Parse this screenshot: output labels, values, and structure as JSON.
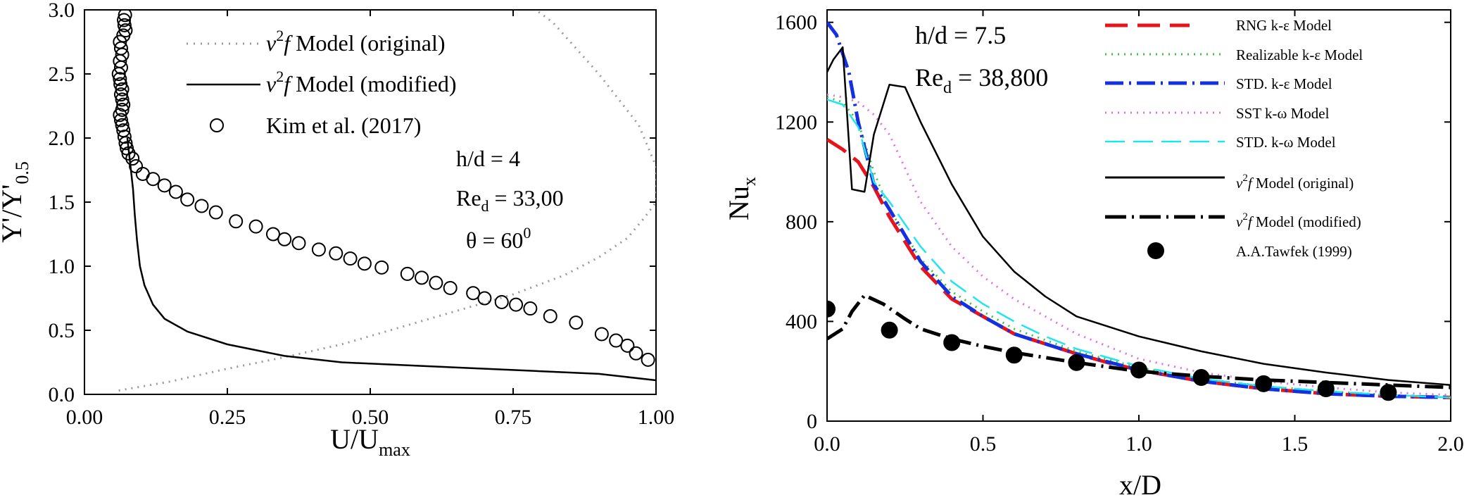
{
  "chart_data": [
    {
      "type": "line",
      "xlabel": "U/U",
      "xlabel_sub": "max",
      "ylabel": "Y'/Y'",
      "ylabel_sub": "0.5",
      "xlim": [
        0,
        1
      ],
      "ylim": [
        0,
        3
      ],
      "xticks": [
        "0.00",
        "0.25",
        "0.50",
        "0.75",
        "1.00"
      ],
      "yticks": [
        "0.0",
        "0.5",
        "1.0",
        "1.5",
        "2.0",
        "2.5",
        "3.0"
      ],
      "grid": false,
      "legend_position": "top-left",
      "annotations": {
        "line1": "h/d = 4",
        "line2_main": "Re",
        "line2_sub": "d",
        "line2_rest": " = 33,00",
        "line3_main": "θ = 60",
        "line3_sup": "0"
      },
      "series": [
        {
          "name": "Model (original)",
          "name_prefix": "v",
          "name_sup": "2",
          "name_f": "f",
          "style": "dotted-arrows",
          "color": "#9a9a9a",
          "points": [
            [
              0.06,
              0.03
            ],
            [
              0.15,
              0.1
            ],
            [
              0.25,
              0.2
            ],
            [
              0.35,
              0.29
            ],
            [
              0.45,
              0.39
            ],
            [
              0.55,
              0.52
            ],
            [
              0.65,
              0.65
            ],
            [
              0.75,
              0.78
            ],
            [
              0.84,
              0.93
            ],
            [
              0.9,
              1.07
            ],
            [
              0.95,
              1.22
            ],
            [
              0.98,
              1.38
            ],
            [
              1.0,
              1.5
            ],
            [
              1.0,
              1.78
            ],
            [
              0.97,
              2.1
            ],
            [
              0.9,
              2.5
            ],
            [
              0.82,
              2.9
            ],
            [
              0.79,
              3.0
            ]
          ]
        },
        {
          "name": "Model (modified)",
          "name_prefix": "v",
          "name_sup": "2",
          "name_f": "f",
          "style": "solid",
          "color": "#000000",
          "points": [
            [
              1.0,
              0.11
            ],
            [
              0.9,
              0.16
            ],
            [
              0.75,
              0.19
            ],
            [
              0.6,
              0.22
            ],
            [
              0.45,
              0.25
            ],
            [
              0.35,
              0.3
            ],
            [
              0.25,
              0.39
            ],
            [
              0.18,
              0.49
            ],
            [
              0.14,
              0.59
            ],
            [
              0.12,
              0.7
            ],
            [
              0.105,
              0.85
            ],
            [
              0.097,
              1.0
            ],
            [
              0.092,
              1.2
            ],
            [
              0.088,
              1.4
            ],
            [
              0.085,
              1.6
            ],
            [
              0.08,
              1.8
            ],
            [
              0.075,
              2.0
            ]
          ]
        },
        {
          "name": "Kim et al. (2017)",
          "style": "open-circle",
          "color": "#000000",
          "points": [
            [
              0.986,
              0.27
            ],
            [
              0.965,
              0.32
            ],
            [
              0.95,
              0.38
            ],
            [
              0.93,
              0.42
            ],
            [
              0.905,
              0.47
            ],
            [
              0.86,
              0.56
            ],
            [
              0.815,
              0.61
            ],
            [
              0.78,
              0.67
            ],
            [
              0.755,
              0.7
            ],
            [
              0.73,
              0.72
            ],
            [
              0.7,
              0.75
            ],
            [
              0.68,
              0.79
            ],
            [
              0.64,
              0.83
            ],
            [
              0.615,
              0.87
            ],
            [
              0.59,
              0.91
            ],
            [
              0.565,
              0.94
            ],
            [
              0.52,
              0.99
            ],
            [
              0.49,
              1.02
            ],
            [
              0.465,
              1.06
            ],
            [
              0.44,
              1.1
            ],
            [
              0.41,
              1.13
            ],
            [
              0.375,
              1.18
            ],
            [
              0.35,
              1.21
            ],
            [
              0.33,
              1.25
            ],
            [
              0.3,
              1.31
            ],
            [
              0.265,
              1.35
            ],
            [
              0.23,
              1.42
            ],
            [
              0.205,
              1.47
            ],
            [
              0.18,
              1.52
            ],
            [
              0.16,
              1.58
            ],
            [
              0.14,
              1.63
            ],
            [
              0.12,
              1.68
            ],
            [
              0.102,
              1.72
            ],
            [
              0.09,
              1.78
            ],
            [
              0.084,
              1.84
            ],
            [
              0.077,
              1.88
            ],
            [
              0.074,
              1.92
            ],
            [
              0.072,
              1.96
            ],
            [
              0.07,
              2.01
            ],
            [
              0.068,
              2.06
            ],
            [
              0.066,
              2.1
            ],
            [
              0.064,
              2.14
            ],
            [
              0.062,
              2.18
            ],
            [
              0.066,
              2.22
            ],
            [
              0.068,
              2.26
            ],
            [
              0.066,
              2.3
            ],
            [
              0.064,
              2.34
            ],
            [
              0.066,
              2.38
            ],
            [
              0.063,
              2.42
            ],
            [
              0.062,
              2.46
            ],
            [
              0.06,
              2.5
            ],
            [
              0.064,
              2.55
            ],
            [
              0.062,
              2.6
            ],
            [
              0.066,
              2.65
            ],
            [
              0.064,
              2.7
            ],
            [
              0.062,
              2.75
            ],
            [
              0.068,
              2.8
            ],
            [
              0.072,
              2.84
            ],
            [
              0.07,
              2.88
            ],
            [
              0.069,
              2.92
            ],
            [
              0.071,
              2.96
            ]
          ]
        }
      ]
    },
    {
      "type": "line",
      "xlabel": "x/D",
      "ylabel": "Nu",
      "ylabel_sub": "x",
      "xlim": [
        0,
        2
      ],
      "ylim": [
        0,
        1650
      ],
      "xticks": [
        "0.0",
        "0.5",
        "1.0",
        "1.5",
        "2.0"
      ],
      "yticks": [
        "0",
        "400",
        "800",
        "1200",
        "1600"
      ],
      "grid": false,
      "legend_position": "top-right",
      "annotations": {
        "line1": "h/d = 7.5",
        "line2_main": "Re",
        "line2_sub": "d",
        "line2_rest": " = 38,800"
      },
      "series": [
        {
          "name": "RNG k-ε Model",
          "style": "long-dash",
          "color": "#e8141c",
          "points": [
            [
              0,
              1130
            ],
            [
              0.05,
              1090
            ],
            [
              0.1,
              1040
            ],
            [
              0.15,
              940
            ],
            [
              0.2,
              820
            ],
            [
              0.3,
              620
            ],
            [
              0.4,
              490
            ],
            [
              0.5,
              420
            ],
            [
              0.6,
              350
            ],
            [
              0.7,
              310
            ],
            [
              0.8,
              270
            ],
            [
              0.9,
              235
            ],
            [
              1.0,
              205
            ],
            [
              1.2,
              160
            ],
            [
              1.4,
              130
            ],
            [
              1.6,
              110
            ],
            [
              1.8,
              100
            ],
            [
              2.0,
              95
            ]
          ]
        },
        {
          "name": "Realizable k-ε Model",
          "style": "dotted-arrows",
          "color": "#36c83a",
          "points": [
            [
              0,
              1300
            ],
            [
              0.05,
              1280
            ],
            [
              0.1,
              1200
            ],
            [
              0.15,
              1000
            ],
            [
              0.2,
              850
            ],
            [
              0.3,
              650
            ],
            [
              0.4,
              520
            ],
            [
              0.5,
              440
            ],
            [
              0.6,
              370
            ],
            [
              0.8,
              280
            ],
            [
              1.0,
              215
            ],
            [
              1.2,
              170
            ],
            [
              1.4,
              140
            ],
            [
              1.6,
              120
            ],
            [
              1.8,
              105
            ],
            [
              2.0,
              95
            ]
          ]
        },
        {
          "name": "STD. k-ε Model",
          "style": "dash-dot",
          "color": "#1530e0",
          "points": [
            [
              0,
              1600
            ],
            [
              0.03,
              1550
            ],
            [
              0.07,
              1400
            ],
            [
              0.1,
              1200
            ],
            [
              0.15,
              950
            ],
            [
              0.2,
              850
            ],
            [
              0.3,
              640
            ],
            [
              0.4,
              500
            ],
            [
              0.5,
              420
            ],
            [
              0.6,
              350
            ],
            [
              0.7,
              310
            ],
            [
              0.8,
              270
            ],
            [
              1.0,
              205
            ],
            [
              1.2,
              160
            ],
            [
              1.4,
              130
            ],
            [
              1.6,
              110
            ],
            [
              1.8,
              100
            ],
            [
              2.0,
              95
            ]
          ]
        },
        {
          "name": "SST k-ω  Model",
          "style": "dotted-arrows",
          "color": "#e070e8",
          "points": [
            [
              0,
              1310
            ],
            [
              0.05,
              1300
            ],
            [
              0.1,
              1280
            ],
            [
              0.15,
              1230
            ],
            [
              0.2,
              1150
            ],
            [
              0.3,
              880
            ],
            [
              0.4,
              700
            ],
            [
              0.5,
              580
            ],
            [
              0.6,
              490
            ],
            [
              0.7,
              420
            ],
            [
              0.8,
              350
            ],
            [
              1.0,
              250
            ],
            [
              1.2,
              195
            ],
            [
              1.4,
              160
            ],
            [
              1.6,
              135
            ],
            [
              1.8,
              115
            ],
            [
              2.0,
              105
            ]
          ]
        },
        {
          "name": "STD. k-ω Model",
          "style": "dash",
          "color": "#20e4ee",
          "points": [
            [
              0,
              1290
            ],
            [
              0.05,
              1270
            ],
            [
              0.1,
              1180
            ],
            [
              0.15,
              960
            ],
            [
              0.2,
              880
            ],
            [
              0.3,
              700
            ],
            [
              0.4,
              560
            ],
            [
              0.5,
              470
            ],
            [
              0.6,
              400
            ],
            [
              0.7,
              340
            ],
            [
              0.8,
              290
            ],
            [
              1.0,
              220
            ],
            [
              1.2,
              170
            ],
            [
              1.4,
              140
            ],
            [
              1.6,
              120
            ],
            [
              1.8,
              105
            ],
            [
              2.0,
              95
            ]
          ]
        },
        {
          "name": "Model (original)",
          "name_prefix": "v",
          "name_sup": "2",
          "name_f": "f",
          "style": "solid",
          "color": "#000000",
          "points": [
            [
              0,
              1400
            ],
            [
              0.02,
              1450
            ],
            [
              0.05,
              1500
            ],
            [
              0.08,
              930
            ],
            [
              0.12,
              920
            ],
            [
              0.15,
              1150
            ],
            [
              0.2,
              1350
            ],
            [
              0.25,
              1340
            ],
            [
              0.3,
              1200
            ],
            [
              0.4,
              950
            ],
            [
              0.5,
              740
            ],
            [
              0.6,
              600
            ],
            [
              0.7,
              500
            ],
            [
              0.8,
              420
            ],
            [
              1.0,
              340
            ],
            [
              1.2,
              280
            ],
            [
              1.4,
              230
            ],
            [
              1.6,
              195
            ],
            [
              1.8,
              165
            ],
            [
              2.0,
              145
            ]
          ]
        },
        {
          "name": "Model (modified)",
          "name_prefix": "v",
          "name_sup": "2",
          "name_f": "f",
          "style": "dash-dot",
          "color": "#000000",
          "points": [
            [
              0,
              330
            ],
            [
              0.05,
              370
            ],
            [
              0.08,
              440
            ],
            [
              0.12,
              505
            ],
            [
              0.18,
              470
            ],
            [
              0.25,
              410
            ],
            [
              0.3,
              370
            ],
            [
              0.4,
              330
            ],
            [
              0.5,
              300
            ],
            [
              0.6,
              275
            ],
            [
              0.8,
              235
            ],
            [
              1.0,
              200
            ],
            [
              1.2,
              180
            ],
            [
              1.4,
              165
            ],
            [
              1.6,
              155
            ],
            [
              1.8,
              145
            ],
            [
              2.0,
              135
            ]
          ]
        },
        {
          "name": "A.A.Tawfek (1999)",
          "style": "filled-circle",
          "color": "#000000",
          "points": [
            [
              0,
              450
            ],
            [
              0.2,
              365
            ],
            [
              0.4,
              315
            ],
            [
              0.6,
              265
            ],
            [
              0.8,
              235
            ],
            [
              1.0,
              205
            ],
            [
              1.2,
              175
            ],
            [
              1.4,
              150
            ],
            [
              1.6,
              130
            ],
            [
              1.8,
              115
            ]
          ]
        }
      ]
    }
  ]
}
